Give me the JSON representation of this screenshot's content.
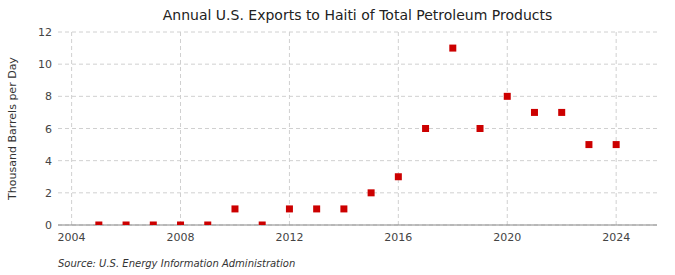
{
  "chart_data": {
    "type": "scatter",
    "title": "Annual U.S. Exports to Haiti of Total Petroleum Products",
    "y_label": "Thousand Barrels per Day",
    "annotations": [
      "Source: U.S. Energy Information Administration"
    ],
    "x": [
      2005,
      2006,
      2007,
      2008,
      2009,
      2010,
      2011,
      2012,
      2013,
      2014,
      2015,
      2016,
      2017,
      2018,
      2019,
      2020,
      2021,
      2022,
      2023,
      2024
    ],
    "values": [
      0,
      0,
      0,
      0,
      0,
      1,
      0,
      1,
      1,
      1,
      2,
      3,
      6,
      11,
      6,
      8,
      7,
      7,
      5,
      5
    ],
    "color": "#cc0000",
    "marker": "square",
    "xlim": [
      2003.5,
      2025.5
    ],
    "ylim": [
      0,
      12
    ],
    "xticks": [
      2004,
      2008,
      2012,
      2016,
      2020,
      2024
    ],
    "yticks": [
      0,
      2,
      4,
      6,
      8,
      10,
      12
    ],
    "grid": true
  }
}
